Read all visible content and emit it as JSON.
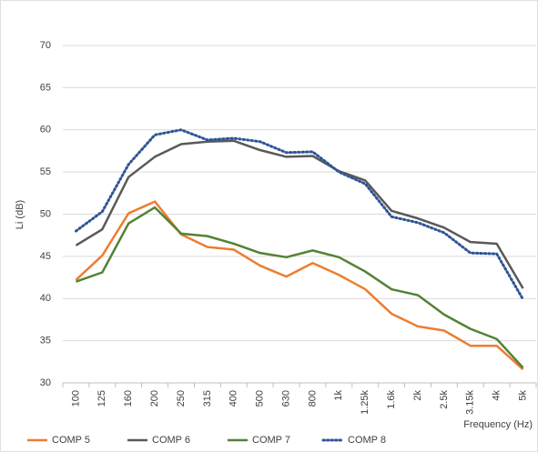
{
  "chart_data": {
    "type": "line",
    "y_label": "Li (dB)",
    "x_label": "Frequency (Hz)",
    "categories": [
      "100",
      "125",
      "160",
      "200",
      "250",
      "315",
      "400",
      "500",
      "630",
      "800",
      "1k",
      "1.25k",
      "1.6k",
      "2k",
      "2.5k",
      "3.15k",
      "4k",
      "5k"
    ],
    "ylim": [
      30,
      70
    ],
    "yticks": [
      30,
      35,
      40,
      45,
      50,
      55,
      60,
      65,
      70
    ],
    "grid": true,
    "legend": "bottom",
    "series": [
      {
        "name": "COMP 5",
        "color": "#ed7d31",
        "style": "solid",
        "values": [
          42.2,
          45.1,
          50.1,
          51.5,
          47.6,
          46.1,
          45.8,
          43.9,
          42.6,
          44.2,
          42.8,
          41.1,
          38.2,
          36.7,
          36.2,
          34.4,
          34.4,
          31.6
        ]
      },
      {
        "name": "COMP 6",
        "color": "#595959",
        "style": "solid",
        "values": [
          46.3,
          48.2,
          54.4,
          56.8,
          58.3,
          58.6,
          58.7,
          57.6,
          56.8,
          56.9,
          55.1,
          54.0,
          50.4,
          49.5,
          48.4,
          46.7,
          46.5,
          41.2
        ]
      },
      {
        "name": "COMP 7",
        "color": "#548235",
        "style": "solid",
        "values": [
          42.0,
          43.1,
          48.9,
          50.8,
          47.7,
          47.4,
          46.5,
          45.4,
          44.9,
          45.7,
          44.9,
          43.2,
          41.1,
          40.4,
          38.1,
          36.4,
          35.2,
          31.8
        ]
      },
      {
        "name": "COMP 8",
        "color": "#2f5597",
        "style": "dotted",
        "values": [
          48.0,
          50.3,
          55.9,
          59.4,
          60.0,
          58.8,
          59.0,
          58.6,
          57.3,
          57.4,
          55.0,
          53.6,
          49.7,
          49.0,
          47.8,
          45.4,
          45.3,
          39.9
        ]
      }
    ]
  }
}
